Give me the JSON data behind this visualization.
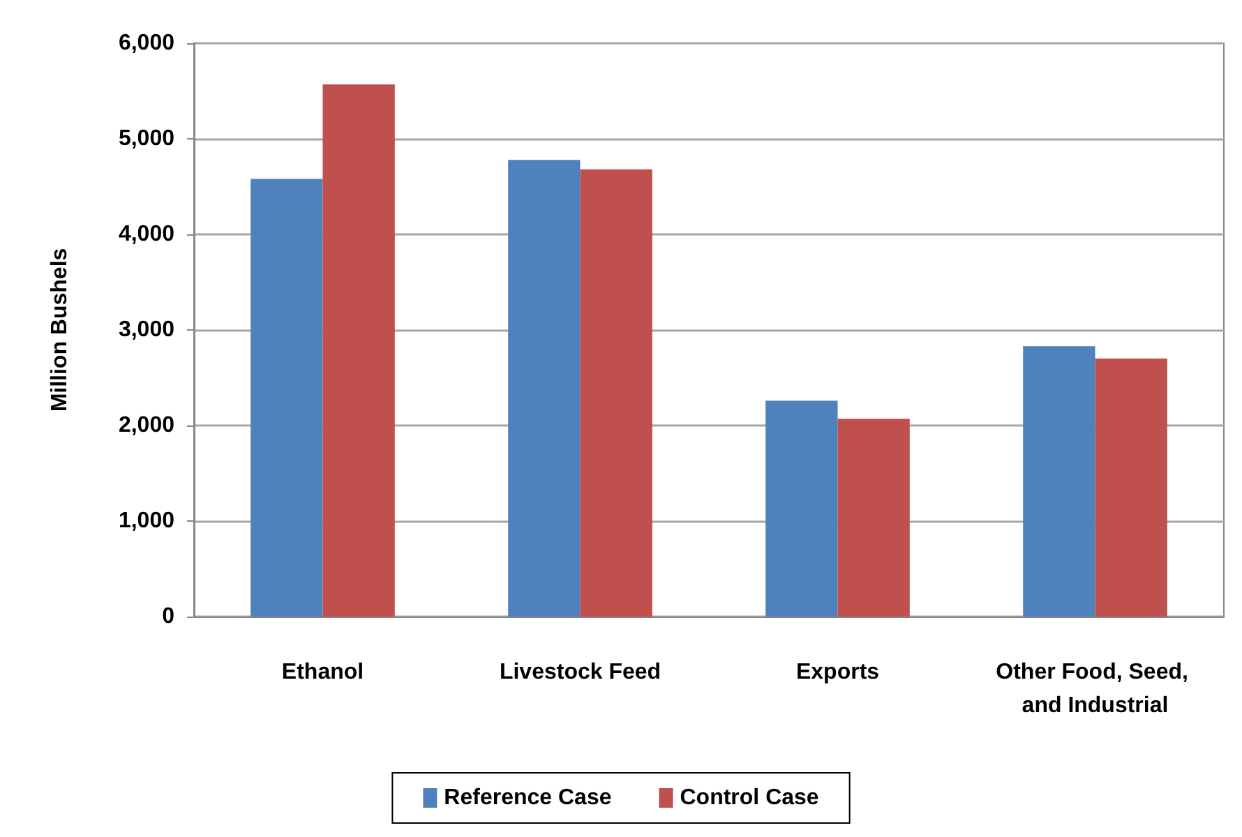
{
  "chart_data": {
    "type": "bar",
    "ylabel": "Million Bushels",
    "categories": [
      "Ethanol",
      "Livestock Feed",
      "Exports",
      "Other Food, Seed, and Industrial"
    ],
    "series": [
      {
        "name": "Reference Case",
        "color": "#4f81bd",
        "values": [
          4580,
          4780,
          2260,
          2830
        ]
      },
      {
        "name": "Control Case",
        "color": "#c0504d",
        "values": [
          5570,
          4680,
          2070,
          2700
        ]
      }
    ],
    "ylim": [
      0,
      6000
    ],
    "yticks": [
      0,
      {
        "value": 1000,
        "label": "1,000"
      },
      {
        "value": 2000,
        "label": "2,000"
      },
      {
        "value": 3000,
        "label": "3,000"
      },
      {
        "value": 4000,
        "label": "4,000"
      },
      {
        "value": 5000,
        "label": "5,000"
      },
      {
        "value": 6000,
        "label": "6,000"
      }
    ],
    "grid": "y",
    "legend": "bottom"
  }
}
